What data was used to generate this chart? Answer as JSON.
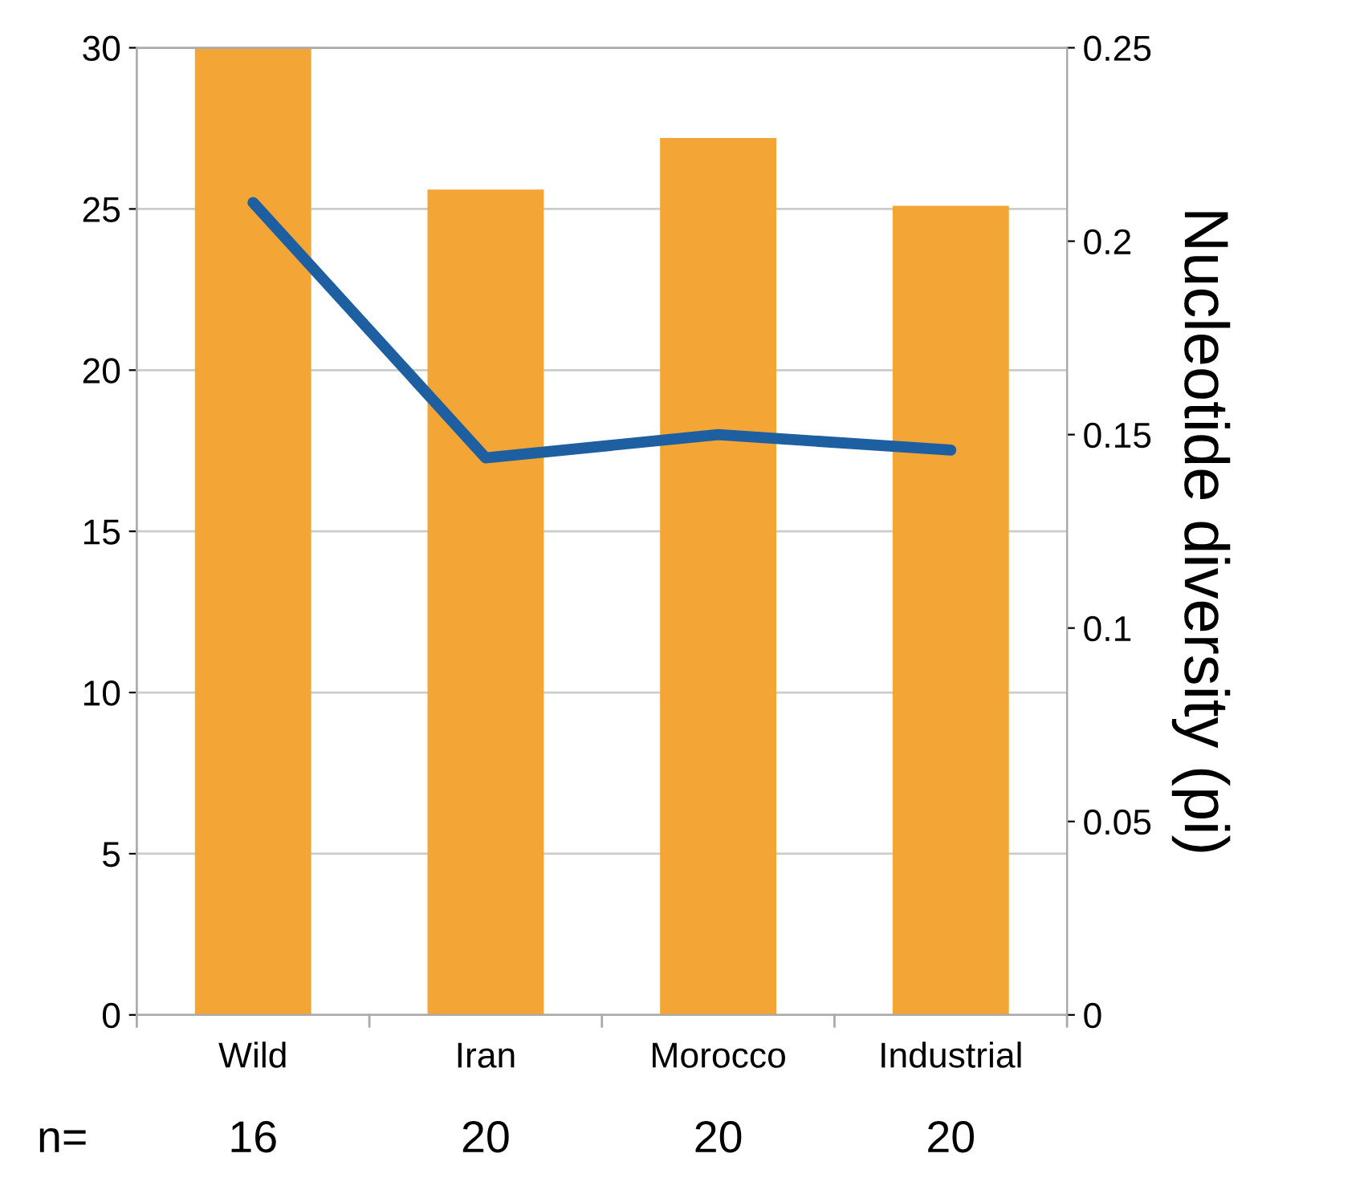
{
  "chart_data": {
    "type": "bar",
    "categories": [
      "Wild",
      "Iran",
      "Morocco",
      "Industrial"
    ],
    "series": [
      {
        "color": "#f3a535",
        "values": [
          30,
          25.6,
          27.2,
          25.1
        ]
      },
      {
        "type": "line",
        "axis": "y2",
        "color": "#1d5fa0",
        "values": [
          0.21,
          0.144,
          0.15,
          0.146
        ]
      }
    ],
    "ylim": [
      0,
      30
    ],
    "yticks": [
      0,
      5,
      10,
      15,
      20,
      25,
      30
    ],
    "y2lim": [
      0,
      0.25
    ],
    "y2ticks": [
      0,
      0.05,
      0.1,
      0.15,
      0.2,
      0.25
    ],
    "y2label": "Nucleotide diversity (pi)",
    "grid": "y",
    "marker": "none",
    "line_style": "solid",
    "annotations": [
      "n=",
      "16",
      "20",
      "20",
      "20"
    ]
  }
}
